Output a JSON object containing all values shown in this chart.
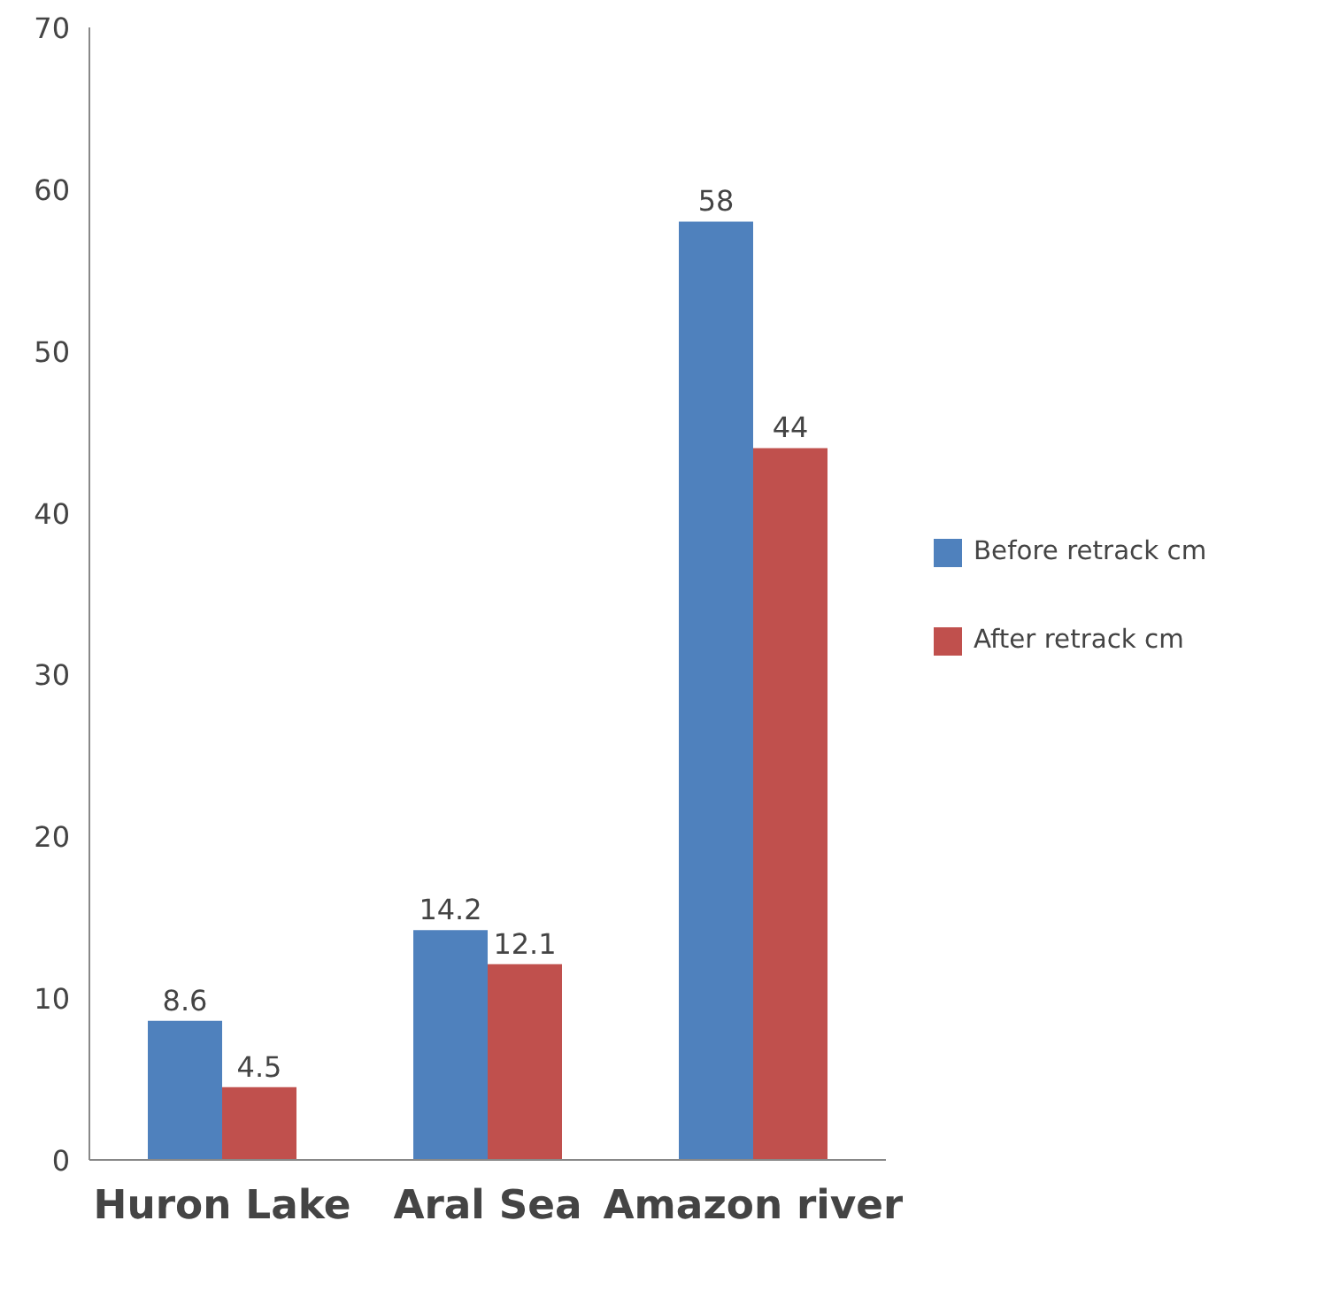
{
  "chart_data": {
    "type": "bar",
    "categories": [
      "Huron Lake",
      "Aral Sea",
      "Amazon river"
    ],
    "series": [
      {
        "name": "Before retrack cm",
        "color": "#4f81bd",
        "values": [
          8.6,
          14.2,
          58
        ]
      },
      {
        "name": "After retrack cm",
        "color": "#c0504d",
        "values": [
          4.5,
          12.1,
          44
        ]
      }
    ],
    "ylim": [
      0,
      70
    ],
    "yticks": [
      0,
      10,
      20,
      30,
      40,
      50,
      60,
      70
    ],
    "grid": false,
    "legend": "right",
    "data_labels": true
  }
}
